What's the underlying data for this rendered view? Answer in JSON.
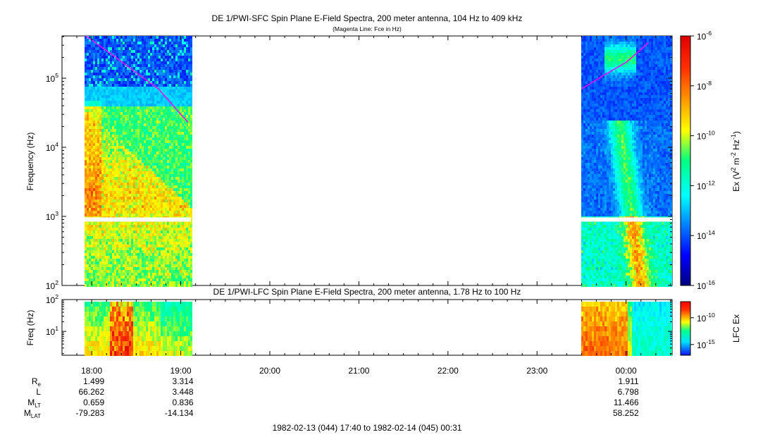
{
  "top_panel": {
    "title": "DE 1/PWI-SFC  Spin Plane E-Field Spectra, 200 meter antenna, 104 Hz to 409 kHz",
    "subtitle": "(Magenta Line: Fce in Hz)",
    "ylabel": "Frequency (Hz)",
    "y_ticks": [
      {
        "base": "10",
        "exp": "2",
        "value": 100
      },
      {
        "base": "10",
        "exp": "3",
        "value": 1000
      },
      {
        "base": "10",
        "exp": "4",
        "value": 10000
      },
      {
        "base": "10",
        "exp": "5",
        "value": 100000
      }
    ],
    "colorbar": {
      "label_parts": [
        "Ex (V",
        "2",
        " m",
        "-2",
        " Hz",
        "-1",
        ")"
      ],
      "ticks": [
        {
          "base": "10",
          "exp": "-6"
        },
        {
          "base": "10",
          "exp": "-8"
        },
        {
          "base": "10",
          "exp": "-10"
        },
        {
          "base": "10",
          "exp": "-12"
        },
        {
          "base": "10",
          "exp": "-14"
        },
        {
          "base": "10",
          "exp": "-16"
        }
      ]
    }
  },
  "bottom_panel": {
    "title": "DE 1/PWI-LFC  Spin Plane E-Field Spectra, 200 meter antenna, 1.78 Hz to 100 Hz",
    "ylabel": "Freq (Hz)",
    "y_ticks": [
      {
        "base": "10",
        "exp": "1",
        "value": 10
      },
      {
        "base": "10",
        "exp": "2",
        "value": 100
      }
    ],
    "colorbar": {
      "label": "LFC Ex",
      "ticks": [
        {
          "base": "10",
          "exp": "-10"
        },
        {
          "base": "10",
          "exp": "-15"
        }
      ]
    }
  },
  "x_axis": {
    "tick_labels": [
      "18:00",
      "19:00",
      "20:00",
      "21:00",
      "22:00",
      "23:00",
      "00:00"
    ]
  },
  "ephemeris": {
    "rows": [
      {
        "label": "R",
        "sub": "e",
        "values": [
          "1.499",
          "3.314",
          "1.911"
        ]
      },
      {
        "label": "L",
        "sub": "",
        "values": [
          "66.262",
          "3.448",
          "6.798"
        ]
      },
      {
        "label": "M",
        "sub": "LT",
        "values": [
          "0.659",
          "0.836",
          "11.466"
        ]
      },
      {
        "label": "M",
        "sub": "LAT",
        "values": [
          "-79.283",
          "-14.134",
          "58.252"
        ]
      }
    ]
  },
  "time_range": "1982-02-13 (044) 17:40 to 1982-02-14 (045) 00:31",
  "chart_data": {
    "type": "heatmap",
    "title": "DE 1/PWI-SFC  Spin Plane E-Field Spectra, 200 meter antenna, 104 Hz to 409 kHz",
    "x_range": [
      "1982-02-13 17:40",
      "1982-02-14 00:31"
    ],
    "x_ticks": [
      "18:00",
      "19:00",
      "20:00",
      "21:00",
      "22:00",
      "23:00",
      "00:00"
    ],
    "data_intervals": [
      {
        "start": "17:55",
        "end": "19:07"
      },
      {
        "start": "23:30",
        "end": "00:31"
      }
    ],
    "panels": [
      {
        "name": "SFC",
        "y_scale": "log",
        "ylim": [
          100,
          409000
        ],
        "ylabel": "Frequency (Hz)",
        "colorbar": {
          "label": "Ex (V2 m-2 Hz-1)",
          "scale": "log",
          "range": [
            1e-16,
            1e-06
          ]
        },
        "overlay_line": {
          "name": "Fce in Hz",
          "color": "#ff00ff",
          "segments": [
            [
              [
                "17:56",
                409000
              ],
              [
                "18:15",
                210000
              ],
              [
                "18:30",
                120000
              ],
              [
                "18:45",
                70000
              ],
              [
                "19:00",
                30000
              ],
              [
                "19:05",
                23000
              ]
            ],
            [
              [
                "23:30",
                70000
              ],
              [
                "23:45",
                110000
              ],
              [
                "00:00",
                170000
              ],
              [
                "00:10",
                260000
              ],
              [
                "00:15",
                330000
              ]
            ]
          ]
        }
      },
      {
        "name": "LFC",
        "y_scale": "log",
        "ylim": [
          1.78,
          100
        ],
        "ylabel": "Freq (Hz)",
        "colorbar": {
          "label": "LFC Ex",
          "scale": "log",
          "range": [
            1e-17,
            1e-07
          ]
        }
      }
    ],
    "colors": {
      "overlay": "#ff00ff",
      "no_data": "#ffffff"
    }
  }
}
